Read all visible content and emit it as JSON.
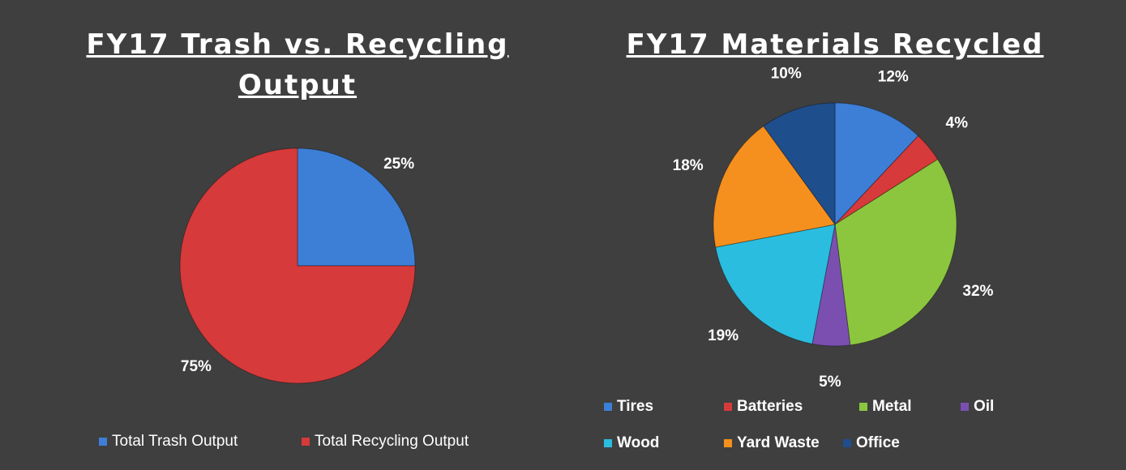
{
  "chart_data": [
    {
      "type": "pie",
      "title": "FY17 Trash vs. Recycling Output",
      "categories": [
        "Total Trash Output",
        "Total Recycling Output"
      ],
      "values": [
        25,
        75
      ],
      "value_labels": [
        "25%",
        "75%"
      ],
      "colors": [
        "#3d7fd6",
        "#d63a3a"
      ],
      "legend": "bottom"
    },
    {
      "type": "pie",
      "title": "FY17 Materials Recycled",
      "categories": [
        "Tires",
        "Batteries",
        "Metal",
        "Oil",
        "Wood",
        "Yard Waste",
        "Office"
      ],
      "values": [
        12,
        4,
        32,
        5,
        19,
        18,
        10
      ],
      "value_labels": [
        "12%",
        "4%",
        "32%",
        "5%",
        "19%",
        "18%",
        "10%"
      ],
      "colors": [
        "#3d7fd6",
        "#d63a3a",
        "#8cc63f",
        "#7b4fb0",
        "#2bbde0",
        "#f5901e",
        "#1f4e8c"
      ],
      "legend": "bottom"
    }
  ]
}
